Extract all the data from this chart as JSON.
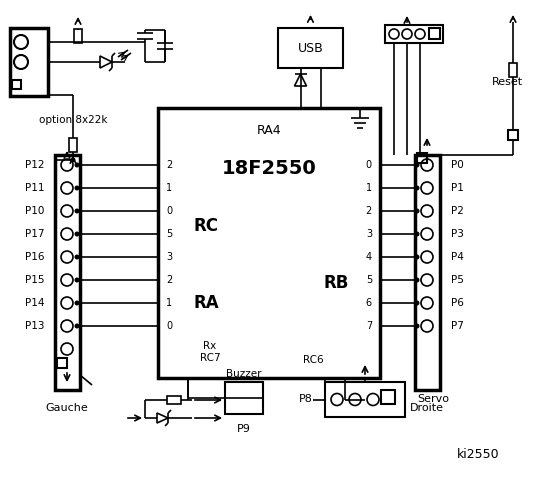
{
  "title": "ki2550",
  "bg_color": "#ffffff",
  "fg_color": "#000000",
  "chip_label": "18F2550",
  "chip_sublabel": "RA4",
  "rc_label": "RC",
  "ra_label": "RA",
  "rb_label": "RB",
  "rc7_label": "Rx",
  "rc7b_label": "RC7",
  "rc6_label": "RC6",
  "left_pins_labels": [
    "P12",
    "P11",
    "P10",
    "P17",
    "P16",
    "P15",
    "P14",
    "P13"
  ],
  "left_pins_rc": [
    "2",
    "1",
    "0",
    "5",
    "3",
    "2",
    "1",
    "0"
  ],
  "right_pins_labels": [
    "P0",
    "P1",
    "P2",
    "P3",
    "P4",
    "P5",
    "P6",
    "P7"
  ],
  "right_pins_rb": [
    "0",
    "1",
    "2",
    "3",
    "4",
    "5",
    "6",
    "7"
  ],
  "usb_label": "USB",
  "reset_label": "Reset",
  "gauche_label": "Gauche",
  "droite_label": "Droite",
  "buzzer_label": "Buzzer",
  "servo_label": "Servo",
  "p8_label": "P8",
  "p9_label": "P9",
  "option_label": "option 8x22k"
}
